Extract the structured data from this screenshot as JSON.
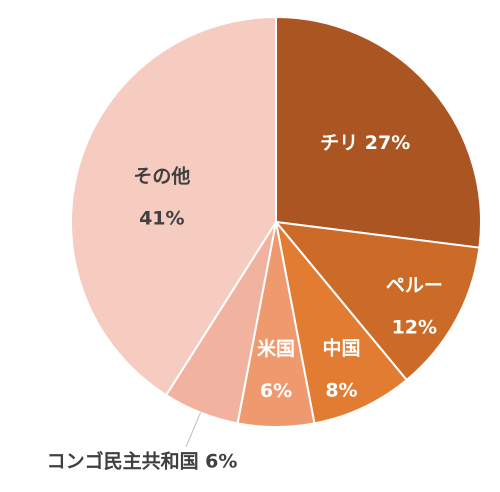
{
  "chart_data": {
    "type": "pie",
    "title": "",
    "start_angle_deg": 0,
    "direction": "clockwise",
    "slices": [
      {
        "label": "チリ",
        "value": 27,
        "value_text": "27%",
        "color": "#AA5522",
        "label_color": "#FFFFFF"
      },
      {
        "label": "ペルー",
        "value": 12,
        "value_text": "12%",
        "color": "#CC6A28",
        "label_color": "#FFFFFF"
      },
      {
        "label": "中国",
        "value": 8,
        "value_text": "8%",
        "color": "#E27C33",
        "label_color": "#FFFFFF"
      },
      {
        "label": "米国",
        "value": 6,
        "value_text": "6%",
        "color": "#EE9A6E",
        "label_color": "#FFFFFF"
      },
      {
        "label": "コンゴ民主共和国",
        "value": 6,
        "value_text": "6%",
        "color": "#F2B2A0",
        "label_color": "#404040"
      },
      {
        "label": "その他",
        "value": 41,
        "value_text": "41%",
        "color": "#F5CCBF",
        "label_color": "#404040"
      }
    ]
  }
}
